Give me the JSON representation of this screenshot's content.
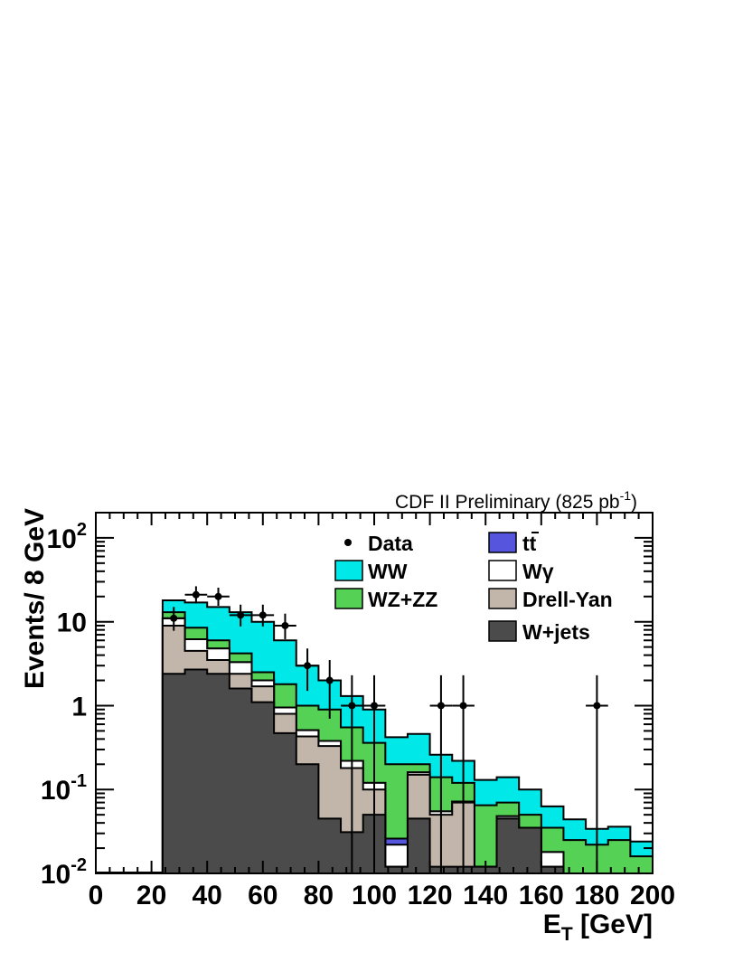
{
  "chart_data": {
    "type": "area",
    "header": "CDF II Preliminary (825 pb",
    "header_sup": "-1",
    "header_close": ")",
    "xlabel_main": "E",
    "xlabel_sub": "T",
    "xlabel_unit": " [GeV]",
    "ylabel": "Events/ 8 GeV",
    "xlim": [
      0,
      200
    ],
    "ylim": [
      0.01,
      200
    ],
    "yscale": "log",
    "legend_position": "top-right",
    "x_ticks": [
      "0",
      "20",
      "40",
      "60",
      "80",
      "100",
      "120",
      "140",
      "160",
      "180",
      "200"
    ],
    "y_ticks": [
      {
        "value": 100,
        "base": "10",
        "exp": "2"
      },
      {
        "value": 10,
        "base": "10",
        "exp": ""
      },
      {
        "value": 1,
        "base": "1",
        "exp": ""
      },
      {
        "value": 0.1,
        "base": "10",
        "exp": "-1"
      },
      {
        "value": 0.01,
        "base": "10",
        "exp": "-2"
      }
    ],
    "bin_edges": [
      24,
      32,
      40,
      48,
      56,
      64,
      72,
      80,
      88,
      96,
      104,
      112,
      120,
      128,
      136,
      144,
      152,
      160,
      168,
      176,
      184,
      192,
      200
    ],
    "stack": [
      {
        "name": "W+jets",
        "color": "#4b4b4b",
        "cumulative": [
          2.4,
          2.7,
          2.4,
          1.6,
          1.1,
          0.47,
          0.2,
          0.045,
          0.031,
          0.05,
          0.012,
          0.045,
          0.012,
          0.012,
          0.012,
          0.045,
          0.035,
          0.012,
          0.01,
          0.01,
          0.01,
          0.01
        ]
      },
      {
        "name": "Drell-Yan",
        "color": "#c2b6aa",
        "cumulative": [
          9.0,
          4.5,
          3.5,
          2.4,
          1.7,
          0.8,
          0.43,
          0.33,
          0.18,
          0.1,
          0.012,
          0.15,
          0.05,
          0.07,
          0.012,
          0.045,
          0.035,
          0.012,
          0.01,
          0.01,
          0.01,
          0.01
        ]
      },
      {
        "name": "Wγ",
        "color": "#ffffff",
        "cumulative": [
          11,
          6.2,
          4.8,
          3.3,
          2.0,
          0.95,
          0.51,
          0.38,
          0.22,
          0.12,
          0.022,
          0.16,
          0.055,
          0.072,
          0.012,
          0.048,
          0.035,
          0.018,
          0.01,
          0.01,
          0.01,
          0.01
        ]
      },
      {
        "name": "tt̄",
        "color": "#5555dd",
        "cumulative": [
          11,
          6.2,
          4.8,
          3.3,
          2.0,
          0.95,
          0.51,
          0.38,
          0.22,
          0.12,
          0.026,
          0.16,
          0.055,
          0.072,
          0.012,
          0.048,
          0.035,
          0.018,
          0.01,
          0.01,
          0.01,
          0.01
        ]
      },
      {
        "name": "WZ+ZZ",
        "color": "#55d155",
        "cumulative": [
          13,
          8.5,
          6.0,
          4.2,
          2.5,
          1.8,
          1.0,
          0.9,
          0.55,
          0.36,
          0.2,
          0.2,
          0.14,
          0.12,
          0.065,
          0.07,
          0.05,
          0.035,
          0.025,
          0.022,
          0.025,
          0.016
        ]
      },
      {
        "name": "WW",
        "color": "#00e8e8",
        "cumulative": [
          18,
          17,
          15,
          13,
          10,
          6.0,
          3.0,
          2.0,
          1.3,
          0.9,
          0.42,
          0.46,
          0.26,
          0.22,
          0.13,
          0.14,
          0.1,
          0.063,
          0.044,
          0.034,
          0.036,
          0.024
        ]
      }
    ],
    "data_points": [
      {
        "x": 28,
        "y": 11,
        "ylo": 7.8,
        "yhi": 15
      },
      {
        "x": 36,
        "y": 21,
        "ylo": 16.5,
        "yhi": 26.5
      },
      {
        "x": 44,
        "y": 20,
        "ylo": 15.5,
        "yhi": 25.5
      },
      {
        "x": 52,
        "y": 12,
        "ylo": 8.8,
        "yhi": 16
      },
      {
        "x": 60,
        "y": 12,
        "ylo": 8.8,
        "yhi": 16
      },
      {
        "x": 68,
        "y": 9,
        "ylo": 6.2,
        "yhi": 12.5
      },
      {
        "x": 76,
        "y": 3,
        "ylo": 1.5,
        "yhi": 4.8
      },
      {
        "x": 84,
        "y": 2,
        "ylo": 0.7,
        "yhi": 3.5
      },
      {
        "x": 92,
        "y": 1,
        "ylo": 0.01,
        "yhi": 2.3
      },
      {
        "x": 100,
        "y": 1,
        "ylo": 0.01,
        "yhi": 2.3
      },
      {
        "x": 124,
        "y": 1,
        "ylo": 0.01,
        "yhi": 2.3
      },
      {
        "x": 132,
        "y": 1,
        "ylo": 0.01,
        "yhi": 2.3
      },
      {
        "x": 180,
        "y": 1,
        "ylo": 0.01,
        "yhi": 2.3
      }
    ],
    "legend": [
      {
        "label": "Data",
        "kind": "marker",
        "color": "#000000"
      },
      {
        "label": "tt",
        "kind": "box",
        "color": "#5555dd",
        "overbar_on": "t"
      },
      {
        "label": "WW",
        "kind": "box",
        "color": "#00e8e8"
      },
      {
        "label": "Wγ",
        "kind": "box",
        "color": "#ffffff"
      },
      {
        "label": "WZ+ZZ",
        "kind": "box",
        "color": "#55d155"
      },
      {
        "label": "Drell-Yan",
        "kind": "box",
        "color": "#c2b6aa"
      },
      {
        "label": "W+jets",
        "kind": "box",
        "color": "#4b4b4b"
      }
    ]
  }
}
